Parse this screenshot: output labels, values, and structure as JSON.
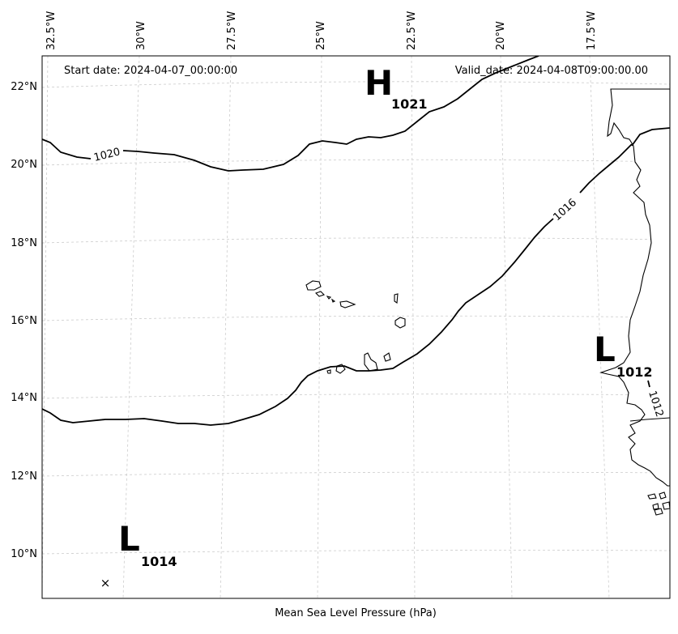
{
  "header": {
    "start_date": "Start date: 2024-04-07_00:00:00",
    "valid_date": "Valid_date: 2024-04-08T09:00:00.00"
  },
  "caption": "Mean Sea Level Pressure (hPa)",
  "longitude_labels": [
    "32.5°W",
    "30°W",
    "27.5°W",
    "25°W",
    "22.5°W",
    "20°W",
    "17.5°W"
  ],
  "latitude_labels": [
    "22°N",
    "20°N",
    "18°N",
    "16°N",
    "14°N",
    "12°N",
    "10°N"
  ],
  "isobar_labels": [
    "1020",
    "1016",
    "1012"
  ],
  "pressure_centers": [
    {
      "letter": "H",
      "value": "1021"
    },
    {
      "letter": "L",
      "value": "1012"
    },
    {
      "letter": "L",
      "value": "1014"
    }
  ],
  "marker": "×",
  "colors": {
    "contour": "#000000",
    "grid": "#cccccc",
    "frame": "#000000",
    "background": "#ffffff"
  }
}
